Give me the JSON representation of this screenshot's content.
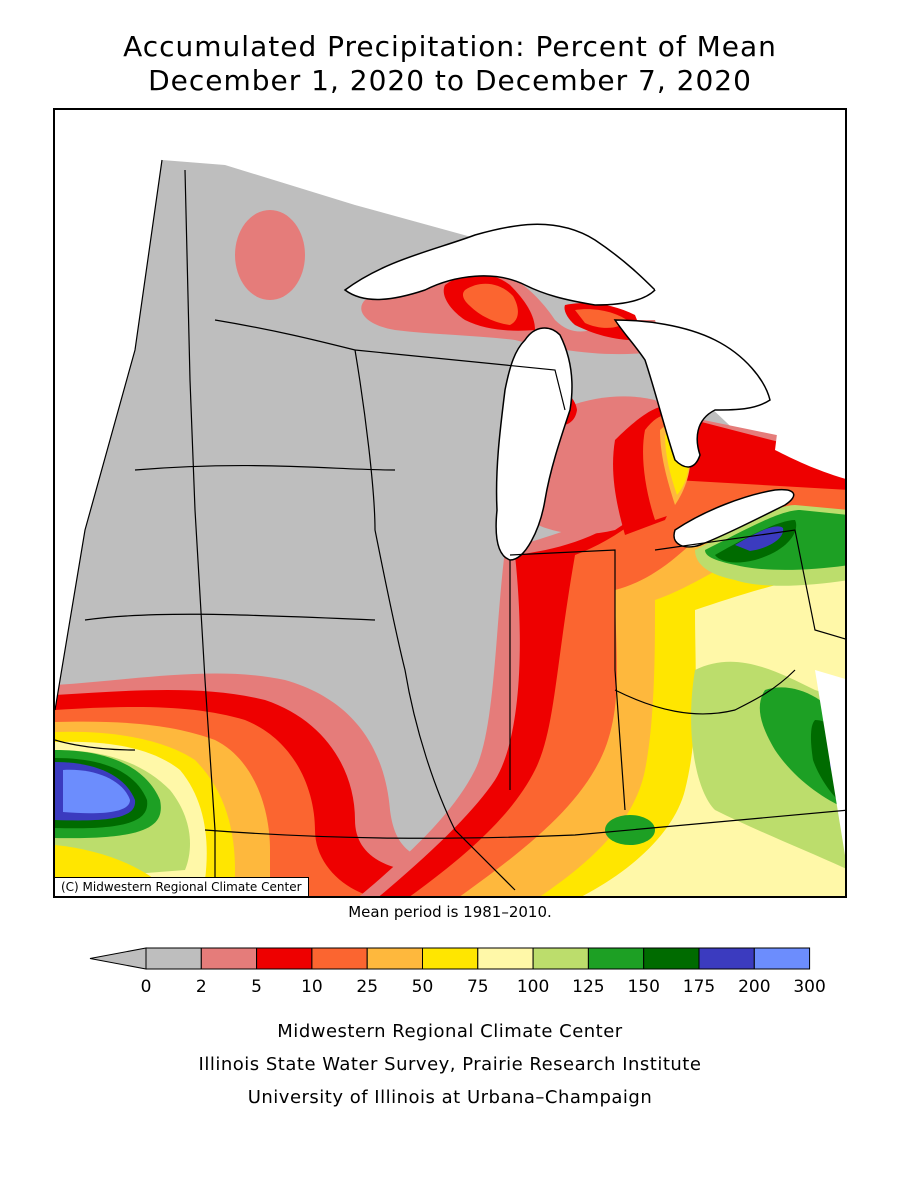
{
  "title_line1": "Accumulated Precipitation: Percent of Mean",
  "title_line2": "December 1, 2020 to December 7, 2020",
  "copyright": "(C) Midwestern Regional Climate Center",
  "mean_period": "Mean period is 1981–2010.",
  "legend": {
    "colors": [
      "#bebebe",
      "#e57c7a",
      "#ee0000",
      "#fb6530",
      "#feb83d",
      "#ffe600",
      "#fff8a8",
      "#bcdd6c",
      "#1da024",
      "#006b00",
      "#3b3bbf",
      "#6c8dfd"
    ],
    "labels": [
      "0",
      "2",
      "5",
      "10",
      "25",
      "50",
      "75",
      "100",
      "125",
      "150",
      "175",
      "200",
      "300"
    ]
  },
  "credits": [
    "Midwestern Regional Climate Center",
    "Illinois State Water Survey, Prairie Research Institute",
    "University of Illinois at Urbana–Champaign"
  ]
}
